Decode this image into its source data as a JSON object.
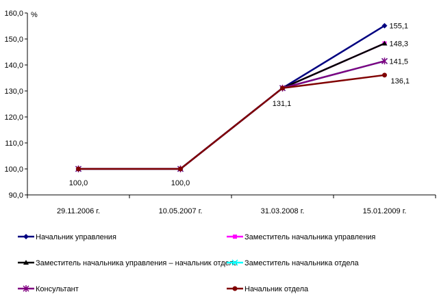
{
  "chart_data": {
    "type": "line",
    "title": "",
    "ylabel": "%",
    "xlabel": "",
    "categories": [
      "29.11.2006 г.",
      "10.05.2007 г.",
      "31.03.2008 г.",
      "15.01.2009 г."
    ],
    "ylim": [
      90,
      160
    ],
    "yticks": [
      "90,0",
      "100,0",
      "110,0",
      "120,0",
      "130,0",
      "140,0",
      "150,0",
      "160,0"
    ],
    "grid": false,
    "legend_position": "bottom",
    "series": [
      {
        "name": "Начальник управления",
        "values": [
          100,
          100,
          131.1,
          155.1
        ],
        "color": "#000080",
        "marker": "diamond"
      },
      {
        "name": "Заместитель начальника управления",
        "values": [
          100,
          100,
          131.1,
          148.3
        ],
        "color": "#FF00FF",
        "marker": "square"
      },
      {
        "name": "Заместитель начальника управления – начальник отдела",
        "values": [
          100,
          100,
          131.1,
          148.3
        ],
        "color": "#000000",
        "marker": "triangle"
      },
      {
        "name": "Заместитель начальника отдела",
        "values": [
          100,
          100,
          131.1,
          141.5
        ],
        "color": "#00FFFF",
        "marker": "x"
      },
      {
        "name": "Консультант",
        "values": [
          100,
          100,
          131.1,
          141.5
        ],
        "color": "#800080",
        "marker": "star"
      },
      {
        "name": "Начальник отдела",
        "values": [
          100,
          100,
          131.1,
          136.1
        ],
        "color": "#800000",
        "marker": "circle"
      }
    ],
    "data_labels": [
      {
        "text": "100,0",
        "category": 0,
        "value": 100
      },
      {
        "text": "100,0",
        "category": 1,
        "value": 100
      },
      {
        "text": "131,1",
        "category": 2,
        "value": 131.1
      },
      {
        "text": "155,1",
        "category": 3,
        "value": 155.1
      },
      {
        "text": "148,3",
        "category": 3,
        "value": 148.3
      },
      {
        "text": "141,5",
        "category": 3,
        "value": 141.5
      },
      {
        "text": "136,1",
        "category": 3,
        "value": 136.1
      }
    ]
  }
}
